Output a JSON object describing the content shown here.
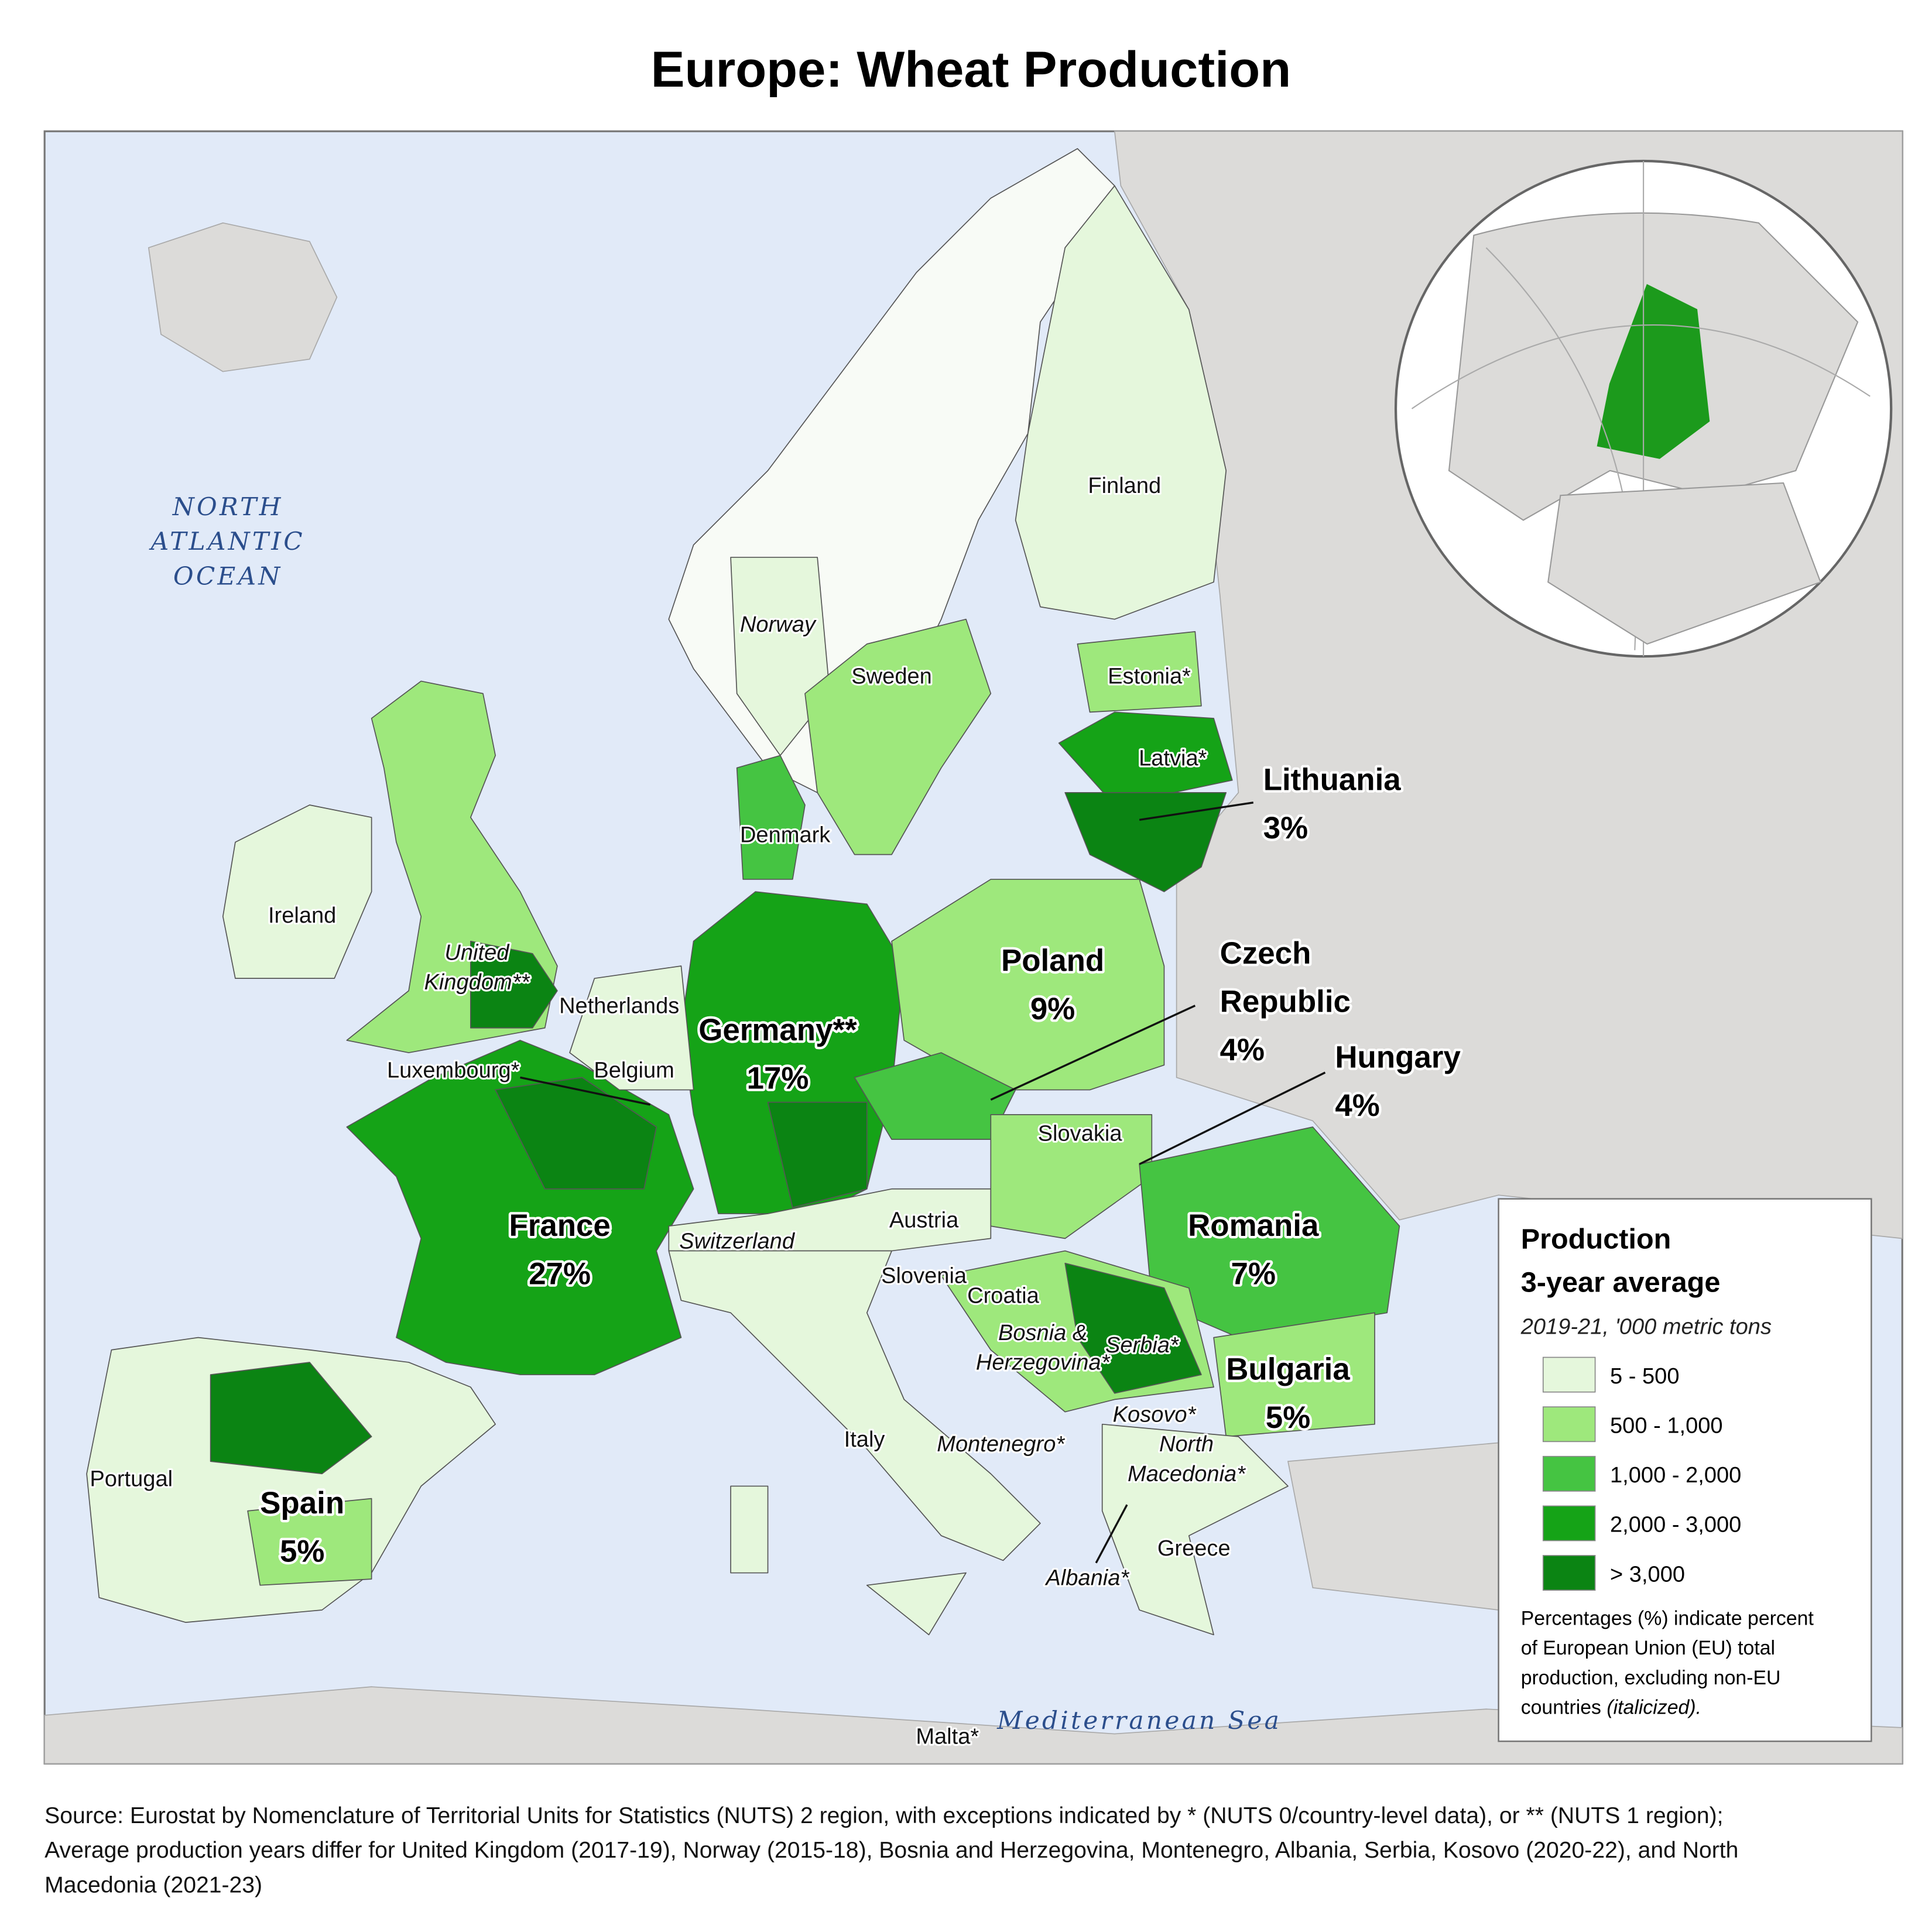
{
  "title": "Europe: Wheat Production",
  "water_labels": {
    "ocean": [
      "NORTH",
      "ATLANTIC",
      "OCEAN"
    ],
    "sea": "Mediterranean Sea"
  },
  "countries": [
    {
      "name": [
        "Finland"
      ]
    },
    {
      "name": [
        "Norway"
      ]
    },
    {
      "name": [
        "Sweden"
      ]
    },
    {
      "name": [
        "Estonia*"
      ]
    },
    {
      "name": [
        "Latvia*"
      ]
    },
    {
      "name": [
        "Lithuania"
      ],
      "share": "3%"
    },
    {
      "name": [
        "Denmark"
      ]
    },
    {
      "name": [
        "Ireland"
      ]
    },
    {
      "name": [
        "United",
        "Kingdom**"
      ]
    },
    {
      "name": [
        "Netherlands"
      ]
    },
    {
      "name": [
        "Germany**"
      ],
      "share": "17%"
    },
    {
      "name": [
        "Poland"
      ],
      "share": "9%"
    },
    {
      "name": [
        "Czech",
        "Republic"
      ],
      "share": "4%"
    },
    {
      "name": [
        "Hungary"
      ],
      "share": "4%"
    },
    {
      "name": [
        "Luxembourg*"
      ]
    },
    {
      "name": [
        "Belgium"
      ]
    },
    {
      "name": [
        "Slovakia"
      ]
    },
    {
      "name": [
        "Austria"
      ]
    },
    {
      "name": [
        "France"
      ],
      "share": "27%"
    },
    {
      "name": [
        "Switzerland"
      ]
    },
    {
      "name": [
        "Romania"
      ],
      "share": "7%"
    },
    {
      "name": [
        "Slovenia"
      ]
    },
    {
      "name": [
        "Croatia"
      ]
    },
    {
      "name": [
        "Bosnia &",
        "Herzegovina*"
      ]
    },
    {
      "name": [
        "Serbia*"
      ]
    },
    {
      "name": [
        "Bulgaria"
      ],
      "share": "5%"
    },
    {
      "name": [
        "Kosovo*"
      ]
    },
    {
      "name": [
        "Montenegro*"
      ]
    },
    {
      "name": [
        "North",
        "Macedonia*"
      ]
    },
    {
      "name": [
        "Italy"
      ]
    },
    {
      "name": [
        "Portugal"
      ]
    },
    {
      "name": [
        "Spain"
      ],
      "share": "5%"
    },
    {
      "name": [
        "Greece"
      ]
    },
    {
      "name": [
        "Albania*"
      ]
    },
    {
      "name": [
        "Malta*"
      ]
    }
  ],
  "legend": {
    "title": [
      "Production",
      "3-year average"
    ],
    "subtitle": "2019-21, '000 metric tons",
    "classes": [
      {
        "label": "5 - 500",
        "color": "#e5f7dc"
      },
      {
        "label": "500 - 1,000",
        "color": "#9ee87c"
      },
      {
        "label": "1,000 - 2,000",
        "color": "#45c442"
      },
      {
        "label": "2,000 - 3,000",
        "color": "#15a317"
      },
      {
        "label": "> 3,000",
        "color": "#0b8413"
      }
    ],
    "note": [
      "Percentages (%) indicate percent",
      "of European Union (EU) total",
      "production, excluding non-EU",
      "countries"
    ],
    "note_italic": "(italicized)."
  },
  "source": [
    "Source: Eurostat by Nomenclature of Territorial Units for Statistics (NUTS) 2 region, with exceptions indicated by * (NUTS 0/country-level data), or ** (NUTS 1 region);",
    "Average production years differ for United Kingdom (2017-19), Norway (2015-18), Bosnia and Herzegovina, Montenegro, Albania, Serbia, Kosovo (2020-22), and North",
    "Macedonia (2021-23)"
  ]
}
